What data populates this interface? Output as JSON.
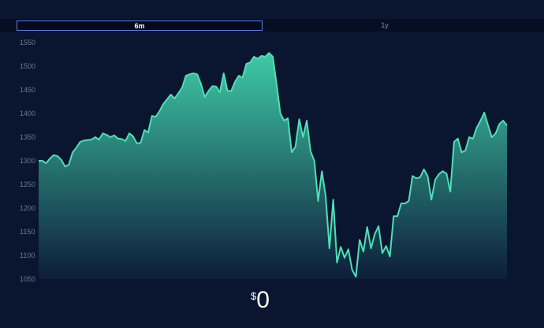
{
  "tabs": [
    {
      "label": "6m",
      "active": true
    },
    {
      "label": "1y",
      "active": false
    }
  ],
  "price": {
    "currency": "$",
    "value": "0"
  },
  "colors": {
    "line": "#4de0b5",
    "area_top": "#3fcaa6",
    "area_bottom": "#0d1d3a",
    "background": "#0a1630"
  },
  "chart_data": {
    "type": "area",
    "yticks": [
      1050,
      1100,
      1150,
      1200,
      1250,
      1300,
      1350,
      1400,
      1450,
      1500,
      1550
    ],
    "ylim": [
      1050,
      1550
    ],
    "grid": false,
    "values": [
      1300,
      1300,
      1295,
      1305,
      1312,
      1310,
      1302,
      1288,
      1292,
      1318,
      1328,
      1340,
      1343,
      1344,
      1345,
      1350,
      1345,
      1358,
      1355,
      1350,
      1354,
      1347,
      1346,
      1342,
      1358,
      1352,
      1337,
      1338,
      1365,
      1360,
      1395,
      1393,
      1405,
      1420,
      1430,
      1440,
      1432,
      1443,
      1455,
      1480,
      1483,
      1485,
      1483,
      1462,
      1435,
      1448,
      1458,
      1457,
      1445,
      1485,
      1448,
      1448,
      1467,
      1480,
      1476,
      1505,
      1508,
      1520,
      1516,
      1522,
      1520,
      1528,
      1520,
      1462,
      1400,
      1385,
      1390,
      1318,
      1330,
      1388,
      1350,
      1385,
      1320,
      1300,
      1215,
      1278,
      1225,
      1115,
      1218,
      1085,
      1118,
      1095,
      1113,
      1070,
      1055,
      1133,
      1108,
      1160,
      1115,
      1145,
      1162,
      1105,
      1120,
      1098,
      1183,
      1183,
      1210,
      1210,
      1215,
      1268,
      1263,
      1265,
      1282,
      1268,
      1218,
      1260,
      1272,
      1278,
      1273,
      1235,
      1340,
      1347,
      1318,
      1322,
      1350,
      1347,
      1370,
      1385,
      1402,
      1375,
      1350,
      1358,
      1378,
      1385,
      1375
    ]
  }
}
